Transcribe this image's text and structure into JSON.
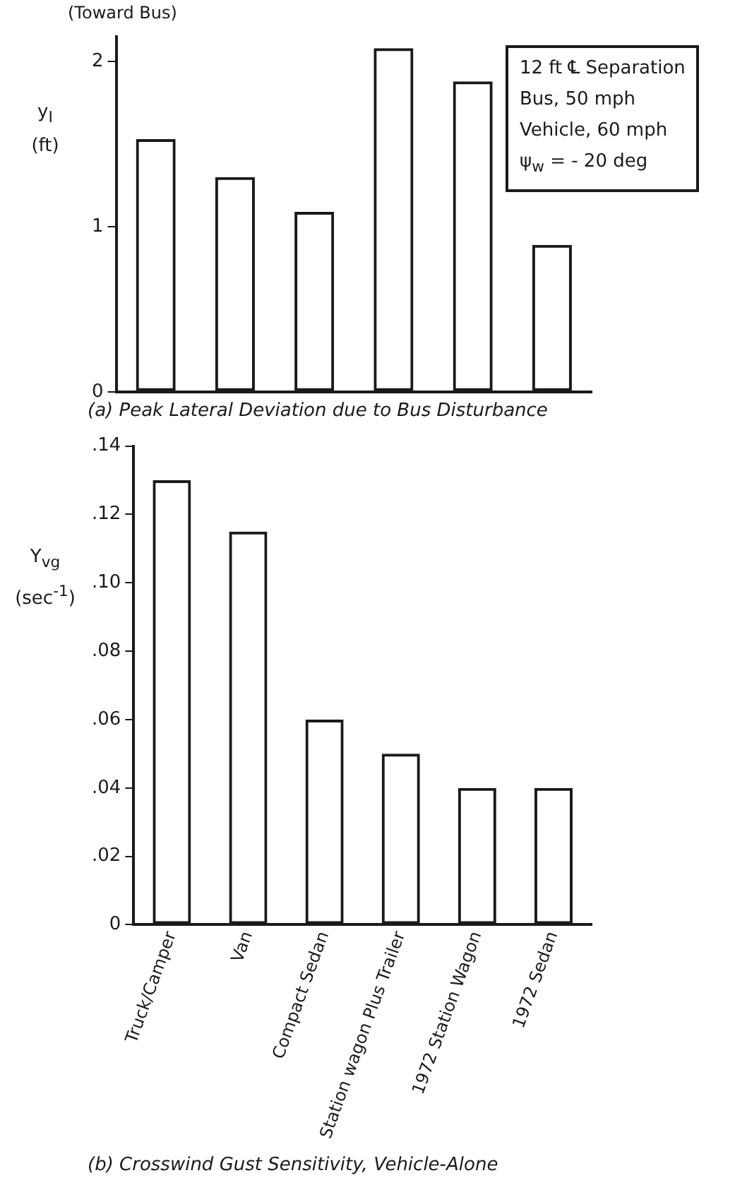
{
  "chart_data": [
    {
      "type": "bar",
      "title": "(a) Peak Lateral Deviation due to Bus Disturbance",
      "ylabel": "y$_{I}$ (ft)",
      "categories": [
        null,
        null,
        null,
        null,
        null,
        null
      ],
      "values": [
        1.53,
        1.3,
        1.09,
        2.08,
        1.88,
        0.89
      ],
      "color": "#1a1a1a",
      "ylim": [
        0,
        2.15
      ],
      "yticks": [
        0,
        1,
        2
      ],
      "grid": false,
      "legend": false,
      "tick_labels": "y",
      "annotations": [
        "(Toward Bus)",
        "12 ft ℄ Separation",
        "Bus, 50 mph",
        "Vehicle, 60 mph",
        "ψ$_{w}$ = - 20 deg"
      ]
    },
    {
      "type": "bar",
      "title": "(b) Crosswind Gust Sensitivity, Vehicle-Alone",
      "ylabel": "Y$_{vg}$ (sec$^{-1}$)",
      "categories": [
        "Truck/Camper",
        "Van",
        "Compact Sedan",
        "Station wagon Plus Trailer",
        "1972 Station Wagon",
        "1972 Sedan"
      ],
      "values": [
        0.13,
        0.115,
        0.06,
        0.05,
        0.04,
        0.04
      ],
      "color": "#1a1a1a",
      "ylim": [
        0,
        0.14
      ],
      "yticks": [
        0,
        {
          "value": 0.02,
          "label": ".02"
        },
        {
          "value": 0.04,
          "label": ".04"
        },
        {
          "value": 0.06,
          "label": ".06"
        },
        {
          "value": 0.08,
          "label": ".08"
        },
        {
          "value": 0.1,
          "label": ".10"
        },
        {
          "value": 0.12,
          "label": ".12"
        },
        {
          "value": 0.14,
          "label": ".14"
        }
      ],
      "grid": false,
      "legend": false
    }
  ]
}
